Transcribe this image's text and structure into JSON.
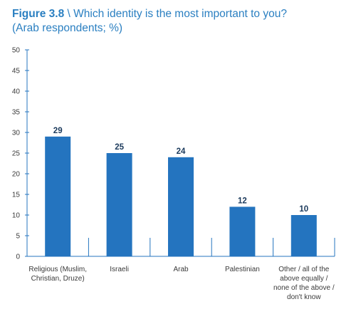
{
  "header": {
    "figure_label": "Figure 3.8",
    "title": "\\ Which identity is the most important to you?",
    "subtitle": "(Arab respondents; %)"
  },
  "colors": {
    "bar": "#2474bf",
    "title": "#2a7fc1",
    "axis": "#2474bf"
  },
  "chart_data": {
    "type": "bar",
    "categories": [
      [
        "Religious (Muslim,",
        "Christian, Druze)"
      ],
      [
        "Israeli"
      ],
      [
        "Arab"
      ],
      [
        "Palestinian"
      ],
      [
        "Other / all of the",
        "above equally /",
        "none of the above /",
        "don't know"
      ]
    ],
    "values": [
      29,
      25,
      24,
      12,
      10
    ],
    "ylim": [
      0,
      50
    ],
    "yticks": [
      0,
      5,
      10,
      15,
      20,
      25,
      30,
      35,
      40,
      45,
      50
    ],
    "grid": false,
    "legend": "none"
  }
}
